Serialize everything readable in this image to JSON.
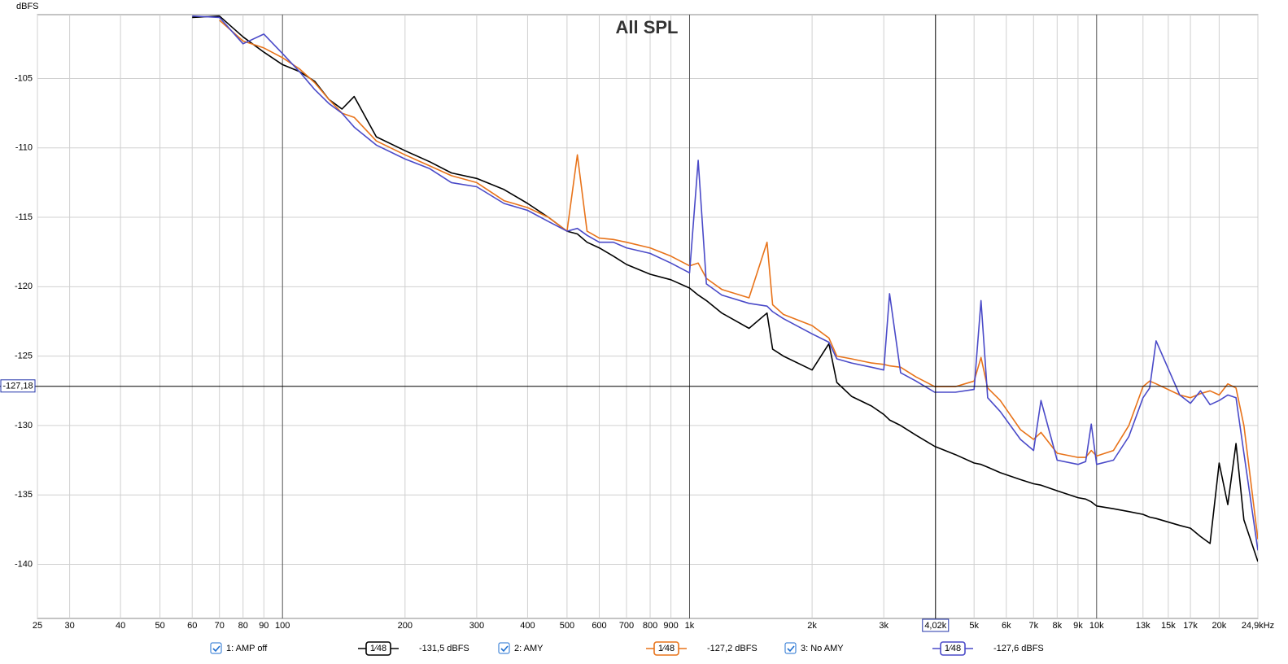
{
  "chart_data": {
    "type": "line",
    "title": "All SPL",
    "y_label": "dBFS",
    "log_x": true,
    "grid": true,
    "xlim": [
      25,
      24900
    ],
    "ylim": [
      -143.9,
      -100.4
    ],
    "xticks": [
      25,
      30,
      40,
      50,
      60,
      70,
      80,
      90,
      100,
      200,
      300,
      400,
      500,
      600,
      700,
      800,
      900,
      {
        "value": 1000,
        "label": "1k"
      },
      {
        "value": 2000,
        "label": "2k"
      },
      {
        "value": 3000,
        "label": "3k"
      },
      {
        "value": 5000,
        "label": "5k"
      },
      {
        "value": 6000,
        "label": "6k"
      },
      {
        "value": 7000,
        "label": "7k"
      },
      {
        "value": 8000,
        "label": "8k"
      },
      {
        "value": 9000,
        "label": "9k"
      },
      {
        "value": 10000,
        "label": "10k"
      },
      {
        "value": 13000,
        "label": "13k"
      },
      {
        "value": 15000,
        "label": "15k"
      },
      {
        "value": 17000,
        "label": "17k"
      },
      {
        "value": 20000,
        "label": "20k"
      },
      {
        "value": 24900,
        "label": "24,9kHz"
      }
    ],
    "yticks": [
      -105,
      -110,
      -115,
      -120,
      -125,
      -130,
      -135,
      -140
    ],
    "cursor": {
      "x": {
        "value": 4020,
        "label": "4,02k"
      },
      "y": {
        "value": -127.18,
        "label": "-127,18"
      }
    },
    "x": [
      35,
      40,
      50,
      60,
      70,
      80,
      90,
      100,
      110,
      120,
      130,
      140,
      150,
      170,
      200,
      230,
      260,
      300,
      350,
      400,
      450,
      500,
      530,
      560,
      600,
      650,
      700,
      800,
      900,
      1000,
      1050,
      1100,
      1200,
      1400,
      1550,
      1600,
      1700,
      2000,
      2200,
      2300,
      2500,
      2800,
      3000,
      3100,
      3300,
      3600,
      4000,
      4500,
      5000,
      5200,
      5400,
      5800,
      6500,
      7000,
      7300,
      8000,
      9000,
      9400,
      9700,
      10000,
      11000,
      12000,
      13000,
      13500,
      14000,
      16000,
      17000,
      18000,
      19000,
      20000,
      21000,
      22000,
      23000,
      24900
    ],
    "series": [
      {
        "name": "1: AMP off",
        "color": "#000000",
        "smoothing": "1⁄48",
        "readout": "-131,5 dBFS",
        "values": [
          null,
          null,
          null,
          -100.6,
          -100.5,
          -102,
          -103.1,
          -104,
          -104.5,
          -105.2,
          -106.5,
          -107.2,
          -106.3,
          -109.2,
          -110.2,
          -111,
          -111.8,
          -112.2,
          -113,
          -114,
          -115,
          -116,
          -116.2,
          -116.8,
          -117.2,
          -117.8,
          -118.4,
          -119.1,
          -119.5,
          -120.1,
          -120.6,
          -121,
          -121.9,
          -123,
          -121.9,
          -124.5,
          -125,
          -126,
          -124.1,
          -126.9,
          -127.9,
          -128.6,
          -129.2,
          -129.6,
          -130,
          -130.7,
          -131.5,
          -132.1,
          -132.7,
          -132.8,
          -133,
          -133.4,
          -133.9,
          -134.2,
          -134.3,
          -134.7,
          -135.2,
          -135.3,
          -135.5,
          -135.8,
          -136,
          -136.2,
          -136.4,
          -136.6,
          -136.7,
          -137.2,
          -137.4,
          -138,
          -138.5,
          -132.7,
          -135.7,
          -131.3,
          -136.8,
          -139.8
        ]
      },
      {
        "name": "2: AMY",
        "color": "#e8731a",
        "smoothing": "1⁄48",
        "readout": "-127,2 dBFS",
        "values": [
          null,
          null,
          null,
          null,
          -100.8,
          -102.3,
          -102.8,
          -103.5,
          -104.3,
          -105.3,
          -106.5,
          -107.5,
          -107.8,
          -109.5,
          -110.5,
          -111.3,
          -112,
          -112.5,
          -113.8,
          -114.3,
          -115,
          -116,
          -110.5,
          -116,
          -116.5,
          -116.6,
          -116.8,
          -117.2,
          -117.8,
          -118.5,
          -118.3,
          -119.4,
          -120.2,
          -120.8,
          -116.8,
          -121.3,
          -122,
          -122.8,
          -123.7,
          -125,
          -125.2,
          -125.5,
          -125.6,
          -125.7,
          -125.8,
          -126.5,
          -127.2,
          -127.2,
          -126.8,
          -125.1,
          -127.3,
          -128.2,
          -130.3,
          -131,
          -130.5,
          -132,
          -132.3,
          -132.3,
          -131.8,
          -132.2,
          -131.8,
          -130,
          -127.2,
          -126.8,
          -127,
          -127.8,
          -128,
          -127.7,
          -127.5,
          -127.8,
          -127,
          -127.3,
          -130,
          -138.2
        ]
      },
      {
        "name": "3: No AMY",
        "color": "#4a4ac8",
        "smoothing": "1⁄48",
        "readout": "-127,6 dBFS",
        "values": [
          null,
          null,
          null,
          -100.5,
          -100.6,
          -102.5,
          -101.8,
          -103.2,
          -104.5,
          -105.8,
          -106.8,
          -107.5,
          -108.5,
          -109.8,
          -110.8,
          -111.5,
          -112.5,
          -112.8,
          -114,
          -114.5,
          -115.3,
          -116,
          -115.8,
          -116.3,
          -116.8,
          -116.8,
          -117.2,
          -117.6,
          -118.3,
          -119,
          -110.9,
          -119.8,
          -120.6,
          -121.2,
          -121.4,
          -121.8,
          -122.3,
          -123.4,
          -124,
          -125.2,
          -125.5,
          -125.8,
          -126,
          -120.5,
          -126.2,
          -126.8,
          -127.6,
          -127.6,
          -127.4,
          -121,
          -128,
          -129,
          -131,
          -131.8,
          -128.2,
          -132.5,
          -132.8,
          -132.6,
          -129.9,
          -132.8,
          -132.5,
          -130.8,
          -128,
          -127.3,
          -123.9,
          -127.8,
          -128.4,
          -127.5,
          -128.5,
          -128.2,
          -127.8,
          -128,
          -132,
          -139
        ]
      }
    ]
  }
}
